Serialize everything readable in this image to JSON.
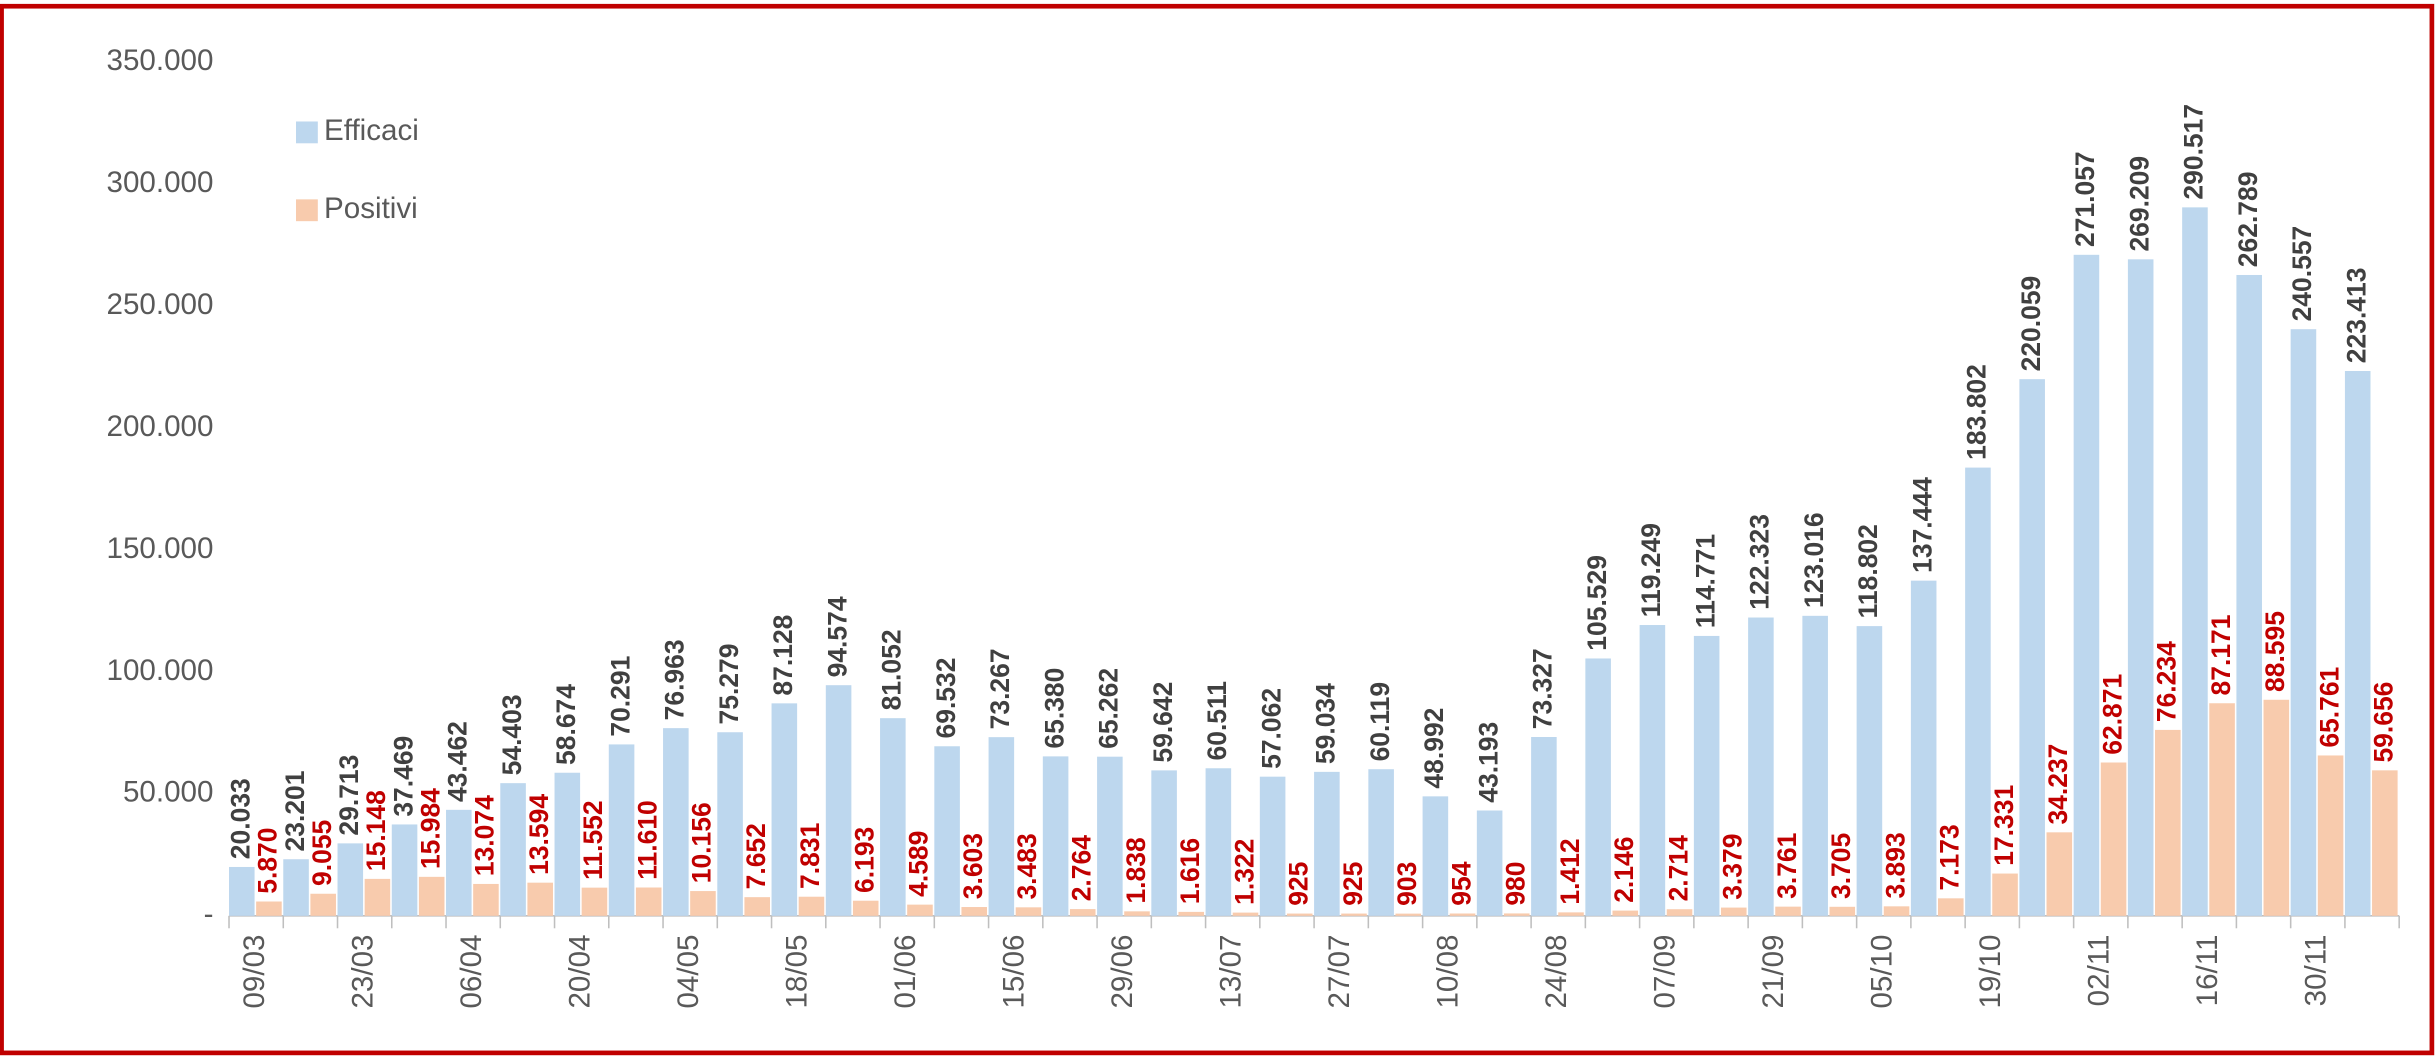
{
  "chart_data": {
    "type": "bar",
    "categories": [
      "09/03",
      null,
      "23/03",
      null,
      "06/04",
      null,
      "20/04",
      null,
      "04/05",
      null,
      "18/05",
      null,
      "01/06",
      null,
      "15/06",
      null,
      "29/06",
      null,
      "13/07",
      null,
      "27/07",
      null,
      "10/08",
      null,
      "24/08",
      null,
      "07/09",
      null,
      "21/09",
      null,
      "05/10",
      null,
      "19/10",
      null,
      "02/11",
      null,
      "16/11",
      null,
      "30/11",
      null
    ],
    "series": [
      {
        "name": "Efficaci",
        "color": "#bdd7ee",
        "label_color": "#404040",
        "values": [
          20033,
          23201,
          29713,
          37469,
          43462,
          54403,
          58674,
          70291,
          76963,
          75279,
          87128,
          94574,
          81052,
          69532,
          73267,
          65380,
          65262,
          59642,
          60511,
          57062,
          59034,
          60119,
          48992,
          43193,
          73327,
          105529,
          119249,
          114771,
          122323,
          123016,
          118802,
          137444,
          183802,
          220059,
          271057,
          269209,
          290517,
          262789,
          240557,
          223413
        ],
        "value_labels": [
          "20.033",
          "23.201",
          "29.713",
          "37.469",
          "43.462",
          "54.403",
          "58.674",
          "70.291",
          "76.963",
          "75.279",
          "87.128",
          "94.574",
          "81.052",
          "69.532",
          "73.267",
          "65.380",
          "65.262",
          "59.642",
          "60.511",
          "57.062",
          "59.034",
          "60.119",
          "48.992",
          "43.193",
          "73.327",
          "105.529",
          "119.249",
          "114.771",
          "122.323",
          "123.016",
          "118.802",
          "137.444",
          "183.802",
          "220.059",
          "271.057",
          "269.209",
          "290.517",
          "262.789",
          "240.557",
          "223.413"
        ]
      },
      {
        "name": "Positivi",
        "color": "#f8cbad",
        "label_color": "#c00000",
        "values": [
          5870,
          9055,
          15148,
          15984,
          13074,
          13594,
          11552,
          11610,
          10156,
          7652,
          7831,
          6193,
          4589,
          3603,
          3483,
          2764,
          1838,
          1616,
          1322,
          925,
          925,
          903,
          954,
          980,
          1412,
          2146,
          2714,
          3379,
          3761,
          3705,
          3893,
          7173,
          17331,
          34237,
          62871,
          76234,
          87171,
          88595,
          65761,
          59656
        ],
        "value_labels": [
          "5.870",
          "9.055",
          "15.148",
          "15.984",
          "13.074",
          "13.594",
          "11.552",
          "11.610",
          "10.156",
          "7.652",
          "7.831",
          "6.193",
          "4.589",
          "3.603",
          "3.483",
          "2.764",
          "1.838",
          "1.616",
          "1.322",
          "925",
          "925",
          "903",
          "954",
          "980",
          "1.412",
          "2.146",
          "2.714",
          "3.379",
          "3.761",
          "3.705",
          "3.893",
          "7.173",
          "17.331",
          "34.237",
          "62.871",
          "76.234",
          "87.171",
          "88.595",
          "65.761",
          "59.656"
        ]
      }
    ],
    "ylim": [
      0,
      350000
    ],
    "yticks": [
      {
        "value": 0,
        "label": "-"
      },
      {
        "value": 50000,
        "label": "50.000"
      },
      {
        "value": 100000,
        "label": "100.000"
      },
      {
        "value": 150000,
        "label": "150.000"
      },
      {
        "value": 200000,
        "label": "200.000"
      },
      {
        "value": 250000,
        "label": "250.000"
      },
      {
        "value": 300000,
        "label": "300.000"
      },
      {
        "value": 350000,
        "label": "350.000"
      }
    ],
    "legend": "top-left"
  }
}
